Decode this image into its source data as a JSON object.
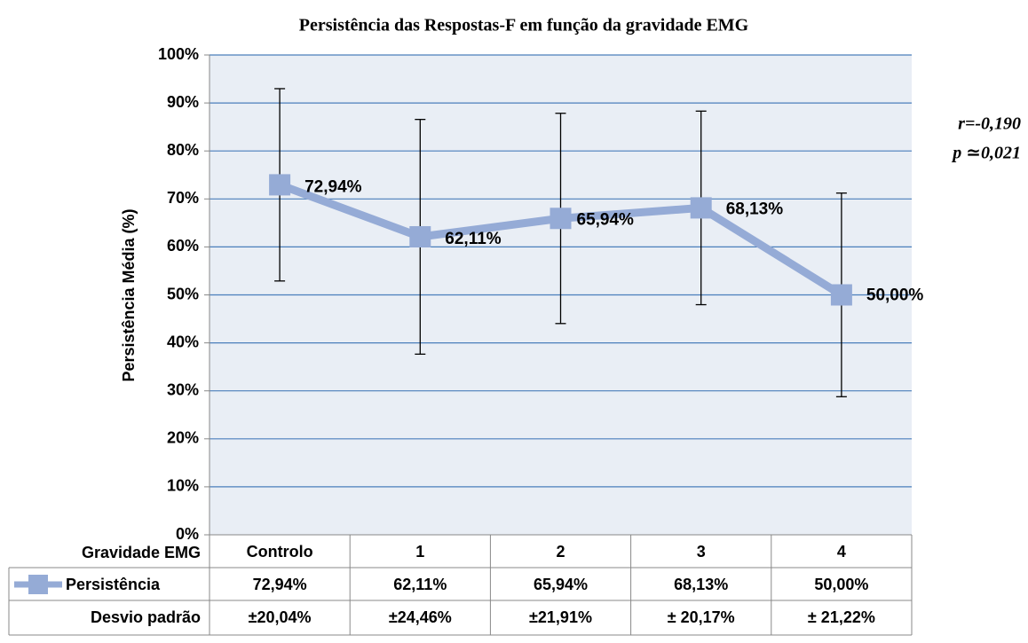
{
  "chart_data": {
    "type": "line",
    "title": "Persistência das Respostas-F em função da gravidade EMG",
    "y_label": "Persistência Média (%)",
    "table_header": "Gravidade EMG",
    "error_row_label": "Desvio padrão",
    "annotations": [
      "r=-0,190",
      "p ≃0,021"
    ],
    "categories": [
      "Controlo",
      "1",
      "2",
      "3",
      "4"
    ],
    "series": [
      {
        "name": "Persistência",
        "color": "#95abd6",
        "values": [
          72.94,
          62.11,
          65.94,
          68.13,
          50.0
        ],
        "value_labels": [
          "72,94%",
          "62,11%",
          "65,94%",
          "68,13%",
          "50,00%"
        ],
        "errors": [
          20.04,
          24.46,
          21.91,
          20.17,
          21.22
        ],
        "error_labels": [
          "±20,04%",
          "±24,46%",
          "±21,91%",
          "± 20,17%",
          "± 21,22%"
        ]
      }
    ],
    "ylim": [
      0,
      100
    ],
    "yticks": [
      {
        "value": 0,
        "label": "0%"
      },
      {
        "value": 10,
        "label": "10%"
      },
      {
        "value": 20,
        "label": "20%"
      },
      {
        "value": 30,
        "label": "30%"
      },
      {
        "value": 40,
        "label": "40%"
      },
      {
        "value": 50,
        "label": "50%"
      },
      {
        "value": 60,
        "label": "60%"
      },
      {
        "value": 70,
        "label": "70%"
      },
      {
        "value": 80,
        "label": "80%"
      },
      {
        "value": 90,
        "label": "90%"
      },
      {
        "value": 100,
        "label": "100%"
      }
    ],
    "grid": true,
    "grid_color": "#4a7ebb",
    "plot_background": "#e9eef5"
  }
}
